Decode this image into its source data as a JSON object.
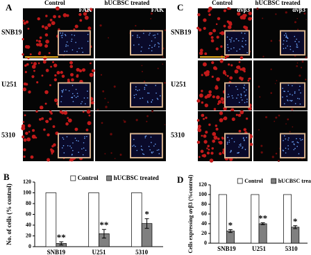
{
  "figure": {
    "panels": [
      {
        "label": "A",
        "headers": [
          "Control",
          "FAK",
          "hUCBSC treated",
          "FAK"
        ],
        "rows": [
          "SNB19",
          "U251",
          "5310"
        ]
      },
      {
        "label": "C",
        "headers": [
          "Control",
          "αvβ3",
          "hUCBSC treated",
          "αvβ3"
        ],
        "rows": [
          "SNB19",
          "U251",
          "5310"
        ]
      }
    ],
    "chart_labels": [
      "B",
      "D"
    ]
  },
  "chart_data": [
    {
      "type": "bar",
      "ylabel": "No. of cells (% control)",
      "categories": [
        "SNB19",
        "U251",
        "5310"
      ],
      "series": [
        {
          "name": "Control",
          "color": "#ffffff",
          "values": [
            100,
            100,
            100
          ]
        },
        {
          "name": "hUCBSC treated",
          "color": "#808080",
          "values": [
            6,
            24,
            43
          ],
          "errors": [
            3,
            8,
            9
          ],
          "annotations": [
            "**",
            "**",
            "*"
          ]
        }
      ],
      "ylim": [
        0,
        120
      ],
      "yticks": [
        0,
        20,
        40,
        60,
        80,
        100,
        120
      ]
    },
    {
      "type": "bar",
      "ylabel": "Cells expressing αvβ3 (%control)",
      "categories": [
        "SNB19",
        "U251",
        "5310"
      ],
      "series": [
        {
          "name": "Control",
          "color": "#ffffff",
          "values": [
            100,
            100,
            100
          ]
        },
        {
          "name": "hUCBSC treated",
          "color": "#808080",
          "values": [
            25,
            40,
            33
          ],
          "errors": [
            3,
            2,
            3
          ],
          "annotations": [
            "*",
            "**",
            "*"
          ]
        }
      ],
      "ylim": [
        0,
        120
      ],
      "yticks": [
        0,
        20,
        40,
        60,
        80,
        100,
        120
      ]
    }
  ]
}
